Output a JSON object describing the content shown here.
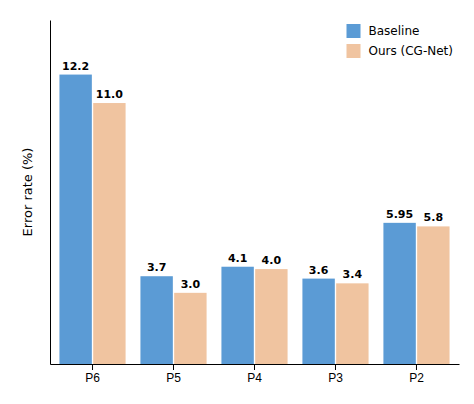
{
  "chart_data": {
    "type": "bar",
    "categories": [
      "P6",
      "P5",
      "P4",
      "P3",
      "P2"
    ],
    "series": [
      {
        "name": "Baseline",
        "color": "#5b9bd5",
        "values": [
          12.2,
          3.7,
          4.1,
          3.6,
          5.95
        ],
        "value_labels": [
          "12.2",
          "3.7",
          "4.1",
          "3.6",
          "5.95"
        ]
      },
      {
        "name": "Ours (CG-Net)",
        "color": "#f0c4a0",
        "values": [
          11.0,
          3.0,
          4.0,
          3.4,
          5.8
        ],
        "value_labels": [
          "11.0",
          "3.0",
          "4.0",
          "3.4",
          "5.8"
        ]
      }
    ],
    "ylabel": "Error rate (%)",
    "ylim": [
      0,
      14.5
    ],
    "legend": "upper right",
    "data_labels": true,
    "tick_labels": "x"
  }
}
